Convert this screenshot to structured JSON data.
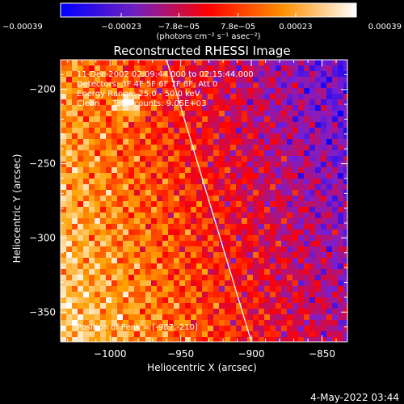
{
  "chart_data": {
    "type": "heatmap",
    "title": "Reconstructed RHESSI Image",
    "xlabel": "Heliocentric X (arcsec)",
    "ylabel": "Heliocentric Y (arcsec)",
    "xlim": [
      -1035,
      -832
    ],
    "ylim": [
      -370,
      -180
    ],
    "xticks": [
      -1000,
      -950,
      -900,
      -850
    ],
    "yticks": [
      -200,
      -250,
      -300,
      -350
    ],
    "xtick_labels": [
      "−1000",
      "−950",
      "−900",
      "−850"
    ],
    "ytick_labels": [
      "−200",
      "−250",
      "−300",
      "−350"
    ],
    "colorbar": {
      "range": [
        -0.00039,
        0.00039
      ],
      "ticks": [
        -0.00039,
        -0.00023,
        -7.8e-05,
        7.8e-05,
        0.00023,
        0.00039
      ],
      "tick_labels": [
        "−0.00039",
        "−0.00023",
        "−7.8e−05",
        "7.8e−05",
        "0.00023",
        "0.00039"
      ],
      "unit_label": "(photons cm⁻² s⁻¹ asec⁻²)"
    },
    "annotations": [
      "11-Dec-2002 02:09:44.000 to 02:15:44.000",
      "Detectors: 3F 4F 5F 6F 7F 8F, Att 0",
      "Energy Range: 25.0 - 50.0 keV",
      "Clean     Total counts: 9.05E+03"
    ],
    "peak_label": "Position of Peak = [-987,-210]",
    "peak": [
      -987,
      -210
    ],
    "limb_line": [
      [
        -960,
        -180
      ],
      [
        -900,
        -370
      ]
    ],
    "grid": false,
    "colormap": [
      "#0000ff",
      "#7b1fd0",
      "#ff0000",
      "#ffa000",
      "#ffffff"
    ]
  },
  "footer": {
    "timestamp": "4-May-2022 03:44"
  }
}
